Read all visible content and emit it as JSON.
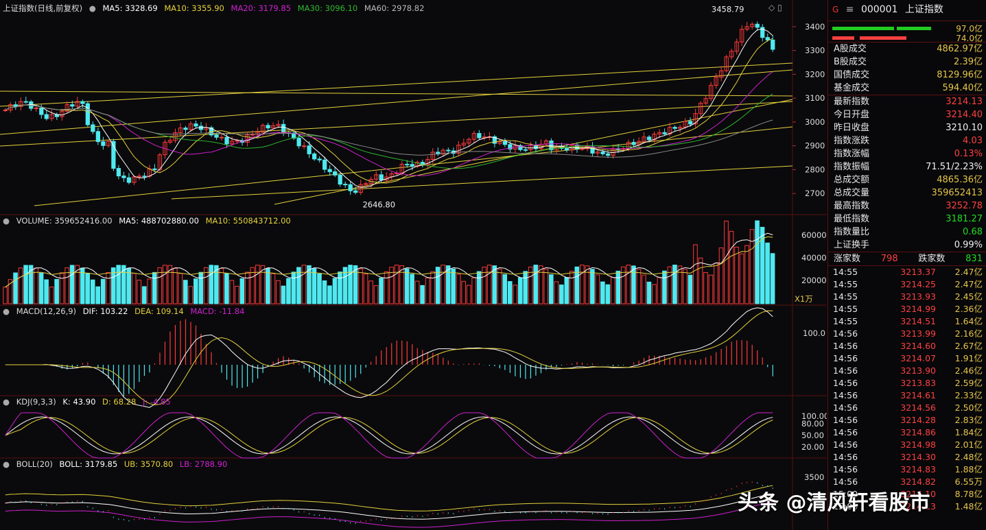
{
  "main_header": {
    "index": "上证指数(日线,前复权)",
    "ma5": "MA5: 3328.69",
    "ma10": "MA10: 3355.90",
    "ma20": "MA20: 3179.85",
    "ma30": "MA30: 3096.10",
    "ma60": "MA60: 2978.82"
  },
  "price_axis": [
    "3400",
    "3300",
    "3200",
    "3100",
    "3000",
    "2900",
    "2800",
    "2700"
  ],
  "annotations": {
    "high": "3458.79",
    "low": "2646.80"
  },
  "volume_header": {
    "volume": "VOLUME: 359652416.00",
    "ma5": "MA5: 488702880.00",
    "ma10": "MA10: 550843712.00"
  },
  "volume_axis": [
    "60000",
    "40000",
    "20000"
  ],
  "volume_unit": "X1万",
  "macd_header": {
    "name": "MACD(12,26,9)",
    "dif": "DIF: 103.22",
    "dea": "DEA: 109.14",
    "macd": "MACD: -11.84"
  },
  "macd_axis": [
    "100.0"
  ],
  "kdj_header": {
    "name": "KDJ(9,3,3)",
    "k": "K: 43.90",
    "d": "D: 68.28",
    "j": "J: -4.85"
  },
  "kdj_axis": [
    "100.00",
    "80.00",
    "50.00",
    "20.00"
  ],
  "boll_header": {
    "name": "BOLL(20)",
    "boll": "BOLL: 3179.85",
    "ub": "UB: 3570.80",
    "lb": "LB: 2788.90"
  },
  "boll_axis": [
    "3500"
  ],
  "colors": {
    "up": "#ff3a3a",
    "down": "#4fe9f0",
    "ma5": "#ffffff",
    "ma10": "#e6d23c",
    "ma20": "#d020d0",
    "ma30": "#2fb82f",
    "ma60": "#888888"
  },
  "right_panel": {
    "title_code": "000001",
    "title_name": "上证指数",
    "title_tag": "G",
    "bar1_value": "97.0亿",
    "bar2_value": "74.0亿",
    "stats": [
      {
        "label": "A股成交",
        "value": "4862.97亿",
        "color": "yel"
      },
      {
        "label": "B股成交",
        "value": "2.39亿",
        "color": "yel"
      },
      {
        "label": "国债成交",
        "value": "8129.96亿",
        "color": "yel"
      },
      {
        "label": "基金成交",
        "value": "594.40亿",
        "color": "yel"
      }
    ],
    "quote": [
      {
        "label": "最新指数",
        "value": "3214.13",
        "color": "red"
      },
      {
        "label": "今日开盘",
        "value": "3214.40",
        "color": "red"
      },
      {
        "label": "昨日收盘",
        "value": "3210.10",
        "color": "wht"
      },
      {
        "label": "指数涨跌",
        "value": "4.03",
        "color": "red"
      },
      {
        "label": "指数涨幅",
        "value": "0.13%",
        "color": "red"
      },
      {
        "label": "指数振幅",
        "value": "71.51/2.23%",
        "color": "wht"
      },
      {
        "label": "总成交额",
        "value": "4865.36亿",
        "color": "yel"
      },
      {
        "label": "总成交量",
        "value": "359652413",
        "color": "yel"
      },
      {
        "label": "最高指数",
        "value": "3252.78",
        "color": "red"
      },
      {
        "label": "最低指数",
        "value": "3181.27",
        "color": "green"
      },
      {
        "label": "指数量比",
        "value": "0.68",
        "color": "green"
      },
      {
        "label": "上证换手",
        "value": "0.99%",
        "color": "wht"
      }
    ],
    "updown": {
      "up_label": "涨家数",
      "up": "798",
      "down_label": "跌家数",
      "down": "831"
    },
    "ticks": [
      {
        "t": "14:55",
        "p": "3213.37",
        "v": "2.47亿"
      },
      {
        "t": "14:55",
        "p": "3214.25",
        "v": "2.47亿"
      },
      {
        "t": "14:55",
        "p": "3213.93",
        "v": "2.45亿"
      },
      {
        "t": "14:55",
        "p": "3214.99",
        "v": "2.36亿"
      },
      {
        "t": "14:55",
        "p": "3214.51",
        "v": "1.64亿"
      },
      {
        "t": "14:56",
        "p": "3213.99",
        "v": "2.16亿"
      },
      {
        "t": "14:56",
        "p": "3214.60",
        "v": "2.67亿"
      },
      {
        "t": "14:56",
        "p": "3214.07",
        "v": "1.91亿"
      },
      {
        "t": "14:56",
        "p": "3213.90",
        "v": "2.46亿"
      },
      {
        "t": "14:56",
        "p": "3213.83",
        "v": "2.59亿"
      },
      {
        "t": "14:56",
        "p": "3214.61",
        "v": "2.33亿"
      },
      {
        "t": "14:56",
        "p": "3214.56",
        "v": "2.50亿"
      },
      {
        "t": "14:56",
        "p": "3214.28",
        "v": "2.83亿"
      },
      {
        "t": "14:56",
        "p": "3214.86",
        "v": "1.84亿"
      },
      {
        "t": "14:56",
        "p": "3214.98",
        "v": "2.01亿"
      },
      {
        "t": "14:56",
        "p": "3214.30",
        "v": "2.48亿"
      },
      {
        "t": "14:56",
        "p": "3214.83",
        "v": "1.88亿"
      },
      {
        "t": "14:56",
        "p": "3214.82",
        "v": "6.55万"
      },
      {
        "t": "15:00",
        "p": "3214.10",
        "v": "8.78亿"
      },
      {
        "t": "15:00",
        "p": "3214.13",
        "v": "1.48亿"
      }
    ]
  },
  "watermark": "头条 @清风轩看股市"
}
